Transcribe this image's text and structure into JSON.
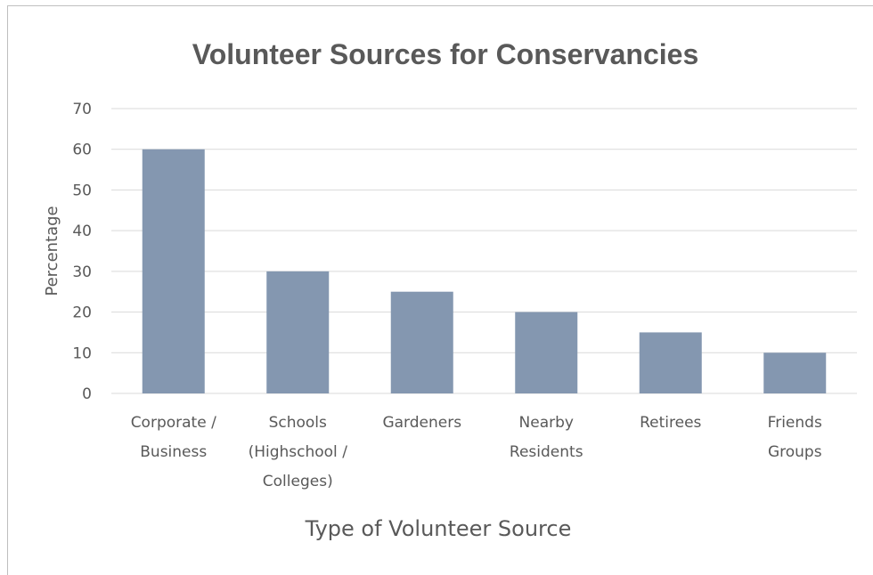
{
  "chart_data": {
    "type": "bar",
    "title": "Volunteer Sources for Conservancies",
    "xlabel": "Type of Volunteer Source",
    "ylabel": "Percentage",
    "categories": [
      [
        "Corporate /",
        "Business"
      ],
      [
        "Schools",
        "(Highschool /",
        "Colleges)"
      ],
      [
        "Gardeners"
      ],
      [
        "Nearby",
        "Residents"
      ],
      [
        "Retirees"
      ],
      [
        "Friends",
        "Groups"
      ]
    ],
    "values": [
      60,
      30,
      25,
      20,
      15,
      10
    ],
    "ylim": [
      0,
      70
    ],
    "yticks": [
      "0",
      "10",
      "20",
      "30",
      "40",
      "50",
      "60",
      "70"
    ],
    "grid": true,
    "bar_color": "#8497b0"
  }
}
